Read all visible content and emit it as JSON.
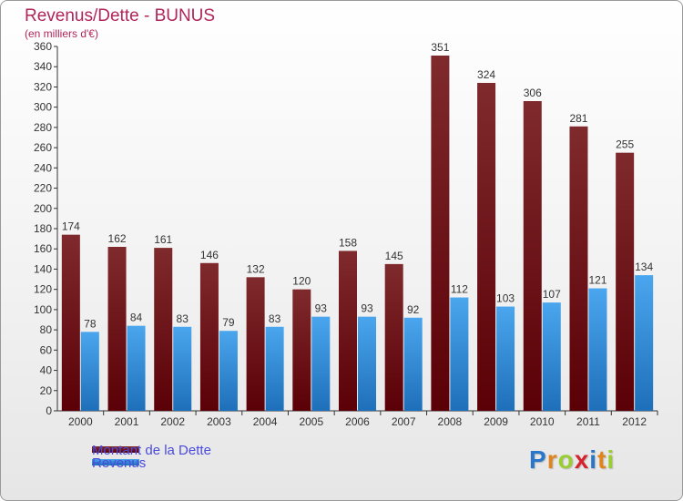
{
  "title": "Revenus/Dette - BUNUS",
  "subtitle": "(en milliers d'€)",
  "legend": {
    "debt": "Montant de la Dette",
    "revenue": "Revenus"
  },
  "logo": {
    "p": "P",
    "r": "r",
    "o": "o",
    "x": "x",
    "i1": "i",
    "t": "t",
    "i2": "i"
  },
  "colors": {
    "debt": "#6b0f14",
    "revenue": "#2b86d9",
    "logo_p": "#2a76c9",
    "logo_r": "#e0851e",
    "logo_o": "#9acd32",
    "logo_x": "#d5222c",
    "logo_i1": "#2a76c9",
    "logo_t": "#e0851e",
    "logo_i2": "#9acd32"
  },
  "chart_data": {
    "type": "bar",
    "categories": [
      "2000",
      "2001",
      "2002",
      "2003",
      "2004",
      "2005",
      "2006",
      "2007",
      "2008",
      "2009",
      "2010",
      "2011",
      "2012"
    ],
    "series": [
      {
        "name": "Montant de la Dette",
        "values": [
          174,
          162,
          161,
          146,
          132,
          120,
          158,
          145,
          351,
          324,
          306,
          281,
          255
        ]
      },
      {
        "name": "Revenus",
        "values": [
          78,
          84,
          83,
          79,
          83,
          93,
          93,
          92,
          112,
          103,
          107,
          121,
          134
        ]
      }
    ],
    "ylim": [
      0,
      360
    ],
    "ytick_step": 20,
    "grid": false,
    "legend_position": "bottom-left"
  }
}
